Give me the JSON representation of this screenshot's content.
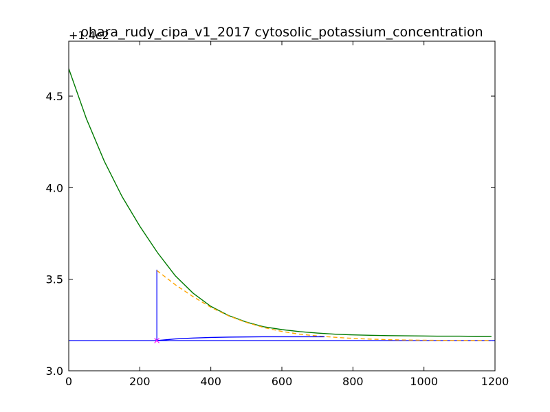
{
  "chart_data": {
    "type": "line",
    "title": "ohara_rudy_cipa_v1_2017 cytosolic_potassium_concentration",
    "y_offset_label": "+1.4e2",
    "xlim": [
      0,
      1200
    ],
    "ylim": [
      3.0,
      4.8
    ],
    "x_ticks": [
      0,
      200,
      400,
      600,
      800,
      1000,
      1200
    ],
    "x_tick_labels": [
      "0",
      "200",
      "400",
      "600",
      "800",
      "1000",
      "1200"
    ],
    "y_ticks": [
      3.0,
      3.5,
      4.0,
      4.5
    ],
    "y_tick_labels": [
      "3.0",
      "3.5",
      "4.0",
      "4.5"
    ],
    "grid": false,
    "series": [
      {
        "color": "#007a00",
        "style": "solid",
        "x": [
          0,
          50,
          100,
          150,
          200,
          250,
          300,
          350,
          400,
          450,
          500,
          550,
          600,
          650,
          700,
          750,
          800,
          850,
          900,
          950,
          1000,
          1050,
          1100,
          1150,
          1190
        ],
        "y": [
          4.65,
          4.375,
          4.145,
          3.952,
          3.79,
          3.645,
          3.519,
          3.424,
          3.352,
          3.302,
          3.266,
          3.24,
          3.225,
          3.214,
          3.206,
          3.2,
          3.196,
          3.194,
          3.192,
          3.191,
          3.19,
          3.189,
          3.189,
          3.188,
          3.188
        ]
      },
      {
        "color": "#ffa500",
        "style": "dashed",
        "x": [
          248,
          300,
          350,
          400,
          450,
          500,
          550,
          600,
          650,
          700,
          750,
          800,
          850,
          900,
          950,
          1000,
          1050,
          1100,
          1150,
          1190
        ],
        "y": [
          3.548,
          3.47,
          3.405,
          3.347,
          3.3,
          3.264,
          3.236,
          3.215,
          3.2,
          3.19,
          3.183,
          3.177,
          3.173,
          3.17,
          3.168,
          3.167,
          3.166,
          3.165,
          3.165,
          3.165
        ]
      },
      {
        "color": "#0000ff",
        "style": "solid",
        "x": [
          248,
          300,
          350,
          400,
          450,
          500,
          550,
          600,
          650,
          700,
          720
        ],
        "y": [
          3.165,
          3.174,
          3.179,
          3.182,
          3.184,
          3.185,
          3.186,
          3.186,
          3.186,
          3.186,
          3.186
        ]
      }
    ],
    "annotations": {
      "horizontal_line": {
        "y": 3.165,
        "color": "#0000ff"
      },
      "vertical_segment": {
        "x": 248,
        "y0": 3.165,
        "y1": 3.552,
        "color": "#0000ff"
      },
      "marker": {
        "x": 248,
        "y": 3.165,
        "symbol": "x",
        "color": "#ff00ff"
      }
    }
  }
}
